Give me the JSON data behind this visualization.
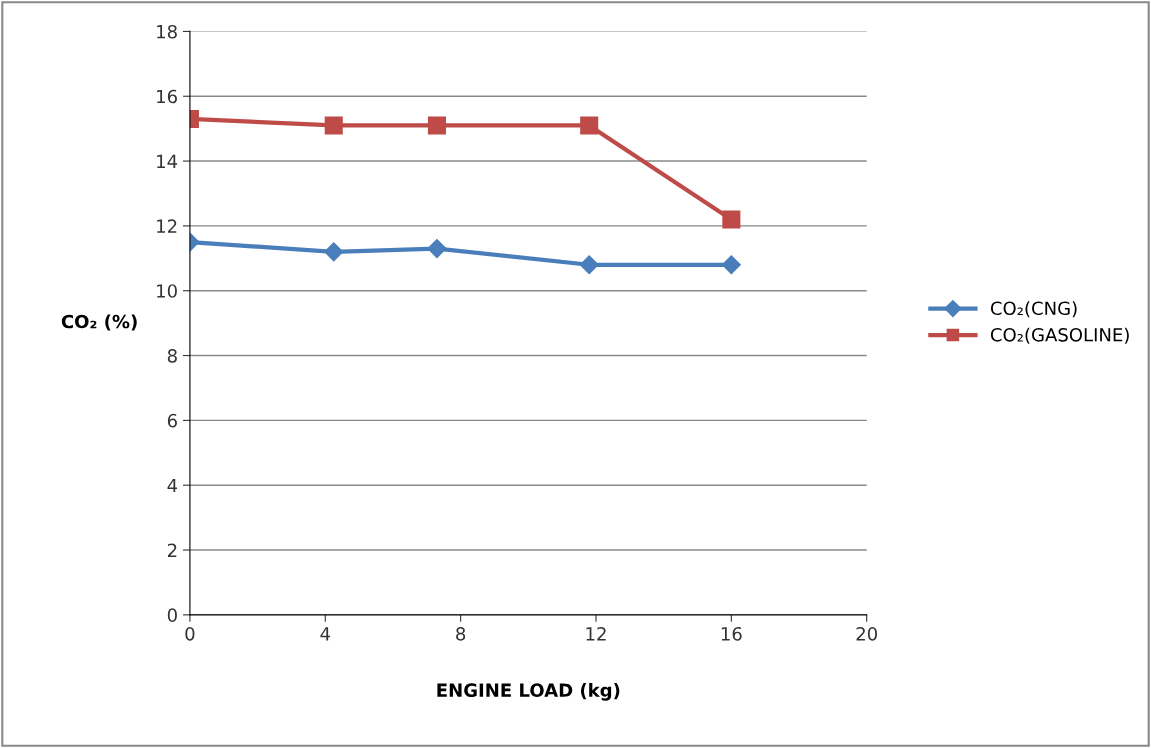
{
  "chart_data": {
    "type": "line",
    "xlabel": "ENGINE LOAD (kg)",
    "ylabel": "CO₂ (%)",
    "xlim": [
      0,
      20
    ],
    "xticks": [
      0,
      4,
      8,
      12,
      16,
      20
    ],
    "ylim": [
      0,
      18
    ],
    "yticks": [
      0,
      2,
      4,
      6,
      8,
      10,
      12,
      14,
      16,
      18
    ],
    "grid": "y",
    "legend": "right",
    "line_style": "solid",
    "series": [
      {
        "name": "CO₂(CNG)",
        "color": "#4a7ebb",
        "marker": "diamond",
        "x": [
          0,
          4.25,
          7.3,
          11.8,
          16.0
        ],
        "values": [
          11.5,
          11.2,
          11.3,
          10.8,
          10.8
        ]
      },
      {
        "name": "CO₂(GASOLINE)",
        "color": "#be4b48",
        "marker": "square",
        "x": [
          0,
          4.25,
          7.3,
          11.8,
          16.0
        ],
        "values": [
          15.3,
          15.1,
          15.1,
          15.1,
          12.2
        ]
      }
    ]
  }
}
